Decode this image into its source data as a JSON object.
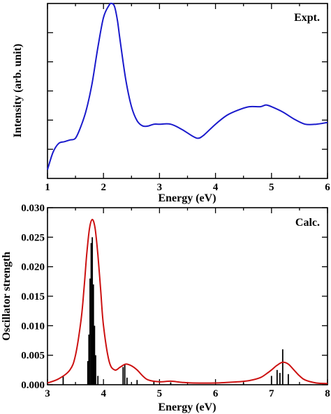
{
  "chart_data": [
    {
      "type": "line",
      "panel_label": "Expt.",
      "xlabel": "Energy (eV)",
      "ylabel": "Intensity (arb. unit)",
      "xlim": [
        1,
        6
      ],
      "ylim": [
        0,
        1
      ],
      "x_ticks": [
        "1",
        "2",
        "3",
        "4",
        "5",
        "6"
      ],
      "y_tick_labels_shown": false,
      "line_color": "#1a1acc",
      "series": [
        {
          "x": [
            1.0,
            1.1,
            1.2,
            1.3,
            1.4,
            1.5,
            1.6,
            1.7,
            1.8,
            1.9,
            2.0,
            2.1,
            2.15,
            2.2,
            2.25,
            2.3,
            2.4,
            2.5,
            2.6,
            2.7,
            2.8,
            2.9,
            3.0,
            3.2,
            3.4,
            3.6,
            3.7,
            3.8,
            4.0,
            4.2,
            4.4,
            4.6,
            4.8,
            4.9,
            5.0,
            5.2,
            5.4,
            5.6,
            5.8,
            6.0
          ],
          "y": [
            0.05,
            0.15,
            0.2,
            0.21,
            0.22,
            0.23,
            0.3,
            0.4,
            0.55,
            0.75,
            0.92,
            0.99,
            1.0,
            0.98,
            0.9,
            0.78,
            0.56,
            0.41,
            0.33,
            0.3,
            0.3,
            0.31,
            0.31,
            0.31,
            0.28,
            0.24,
            0.23,
            0.25,
            0.31,
            0.36,
            0.39,
            0.41,
            0.41,
            0.42,
            0.41,
            0.38,
            0.34,
            0.31,
            0.31,
            0.32
          ]
        }
      ]
    },
    {
      "type": "line",
      "panel_label": "Calc.",
      "xlabel": "Energy (eV)",
      "ylabel": "Oscillator strength",
      "xlim": [
        3,
        8
      ],
      "ylim": [
        0,
        0.03
      ],
      "x_ticks": [
        "3",
        "4",
        "5",
        "6",
        "7",
        "8"
      ],
      "y_ticks": [
        "0.000",
        "0.005",
        "0.010",
        "0.015",
        "0.020",
        "0.025",
        "0.030"
      ],
      "line_color": "#cc1111",
      "stick_color": "#000000",
      "series": [
        {
          "x": [
            3.0,
            3.2,
            3.4,
            3.5,
            3.6,
            3.65,
            3.7,
            3.75,
            3.8,
            3.85,
            3.9,
            3.95,
            4.0,
            4.1,
            4.2,
            4.3,
            4.4,
            4.5,
            4.6,
            4.7,
            4.8,
            5.0,
            5.2,
            5.4,
            5.6,
            6.0,
            6.4,
            6.6,
            6.8,
            6.9,
            7.0,
            7.1,
            7.2,
            7.3,
            7.4,
            7.5,
            7.6,
            7.8,
            8.0
          ],
          "y": [
            0.0003,
            0.001,
            0.0025,
            0.005,
            0.011,
            0.016,
            0.022,
            0.0265,
            0.028,
            0.0265,
            0.022,
            0.016,
            0.01,
            0.004,
            0.0025,
            0.003,
            0.0035,
            0.0032,
            0.0025,
            0.0015,
            0.0008,
            0.0005,
            0.0006,
            0.0004,
            0.0003,
            0.0003,
            0.0005,
            0.0007,
            0.0012,
            0.0018,
            0.0025,
            0.0033,
            0.0038,
            0.0035,
            0.0025,
            0.0015,
            0.0008,
            0.0003,
            0.0002
          ]
        }
      ],
      "sticks": {
        "x": [
          3.28,
          3.72,
          3.74,
          3.76,
          3.78,
          3.8,
          3.82,
          3.84,
          3.86,
          3.9,
          4.35,
          4.38,
          4.42,
          4.6,
          4.9,
          5.2,
          6.5,
          7.0,
          7.1,
          7.15,
          7.2,
          7.3
        ],
        "y": [
          0.0015,
          0.004,
          0.0085,
          0.018,
          0.024,
          0.025,
          0.017,
          0.01,
          0.005,
          0.0015,
          0.003,
          0.0035,
          0.0012,
          0.0008,
          0.0005,
          0.0004,
          0.0003,
          0.0015,
          0.0025,
          0.002,
          0.006,
          0.0018
        ]
      }
    }
  ]
}
